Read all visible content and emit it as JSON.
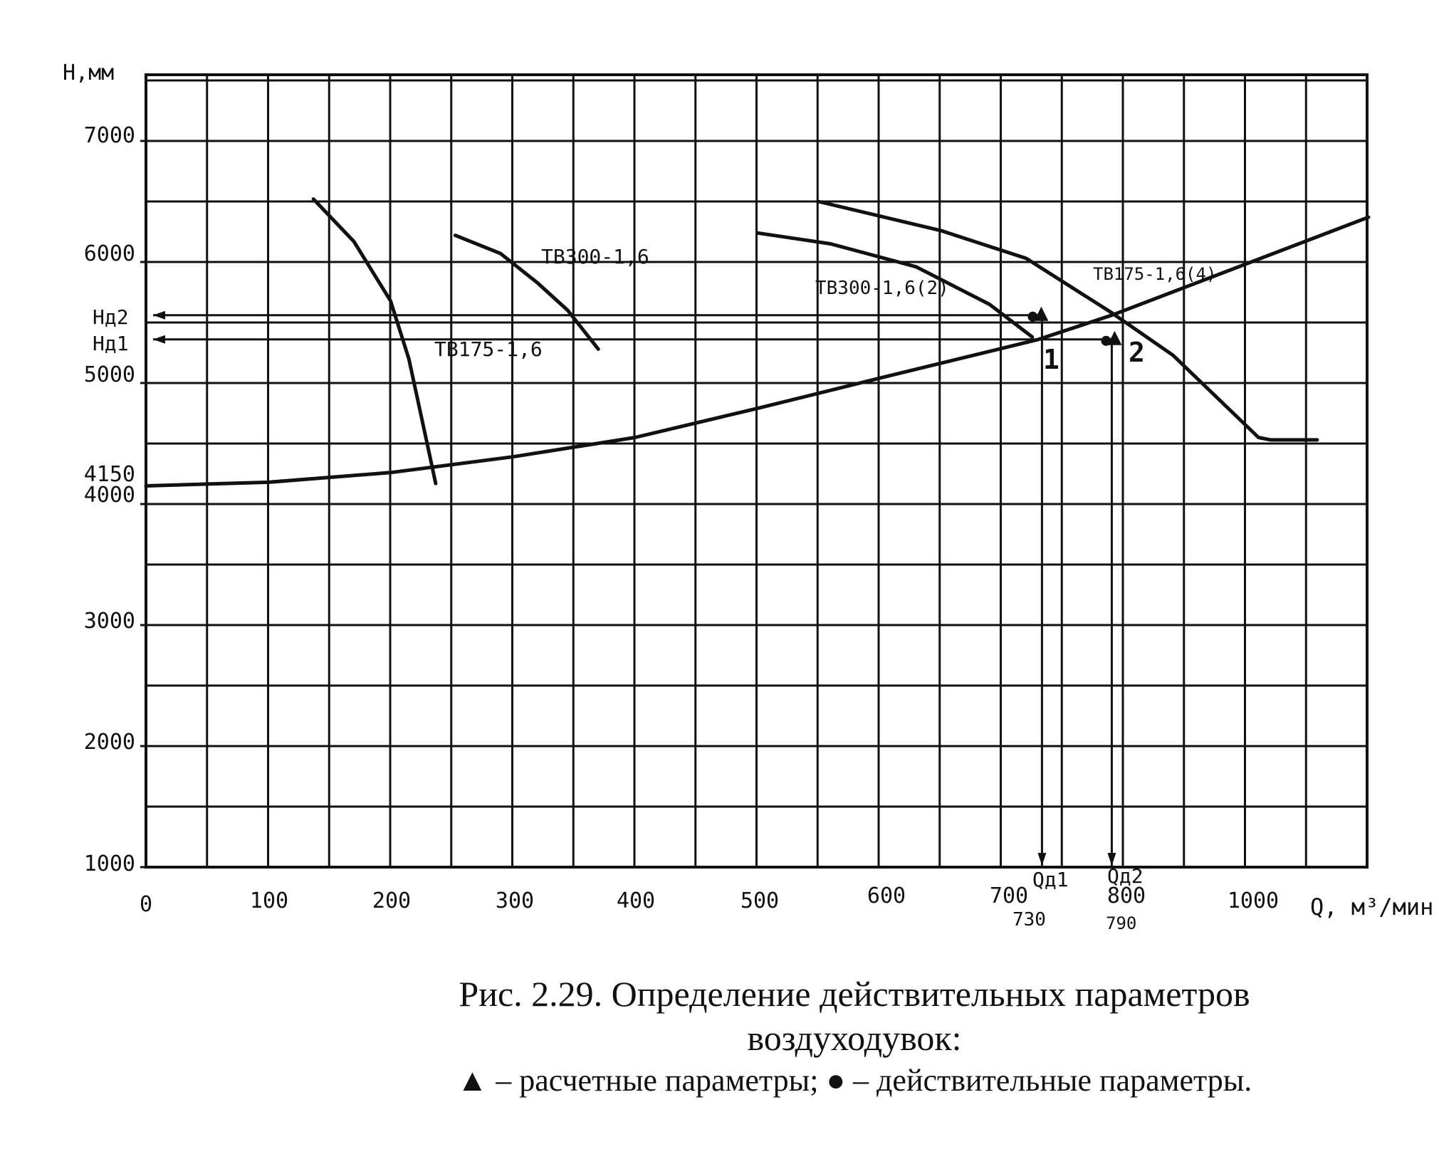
{
  "chart_data": {
    "type": "line",
    "y_axis_label": "H,мм",
    "x_axis_label": "Q, м³/мин",
    "x_ticks": [
      "0",
      "100",
      "200",
      "300",
      "400",
      "500",
      "600",
      "700",
      "800",
      "1000"
    ],
    "y_ticks": [
      "1000",
      "2000",
      "3000",
      "4000",
      "4150",
      "5000",
      "6000",
      "7000"
    ],
    "xlim": [
      0,
      1000
    ],
    "ylim": [
      1000,
      7700
    ],
    "grid": true,
    "series": [
      {
        "name": "ТВ175-1,6",
        "points": [
          [
            137,
            6520
          ],
          [
            170,
            6170
          ],
          [
            200,
            5680
          ],
          [
            215,
            5200
          ],
          [
            230,
            4500
          ],
          [
            237,
            4170
          ]
        ]
      },
      {
        "name": "ТВ300-1,6",
        "points": [
          [
            253,
            6220
          ],
          [
            290,
            6070
          ],
          [
            320,
            5830
          ],
          [
            345,
            5600
          ],
          [
            370,
            5280
          ]
        ]
      },
      {
        "name": "ТВ300-1,6(2)",
        "points": [
          [
            500,
            6240
          ],
          [
            560,
            6150
          ],
          [
            630,
            5960
          ],
          [
            690,
            5650
          ],
          [
            725,
            5380
          ]
        ]
      },
      {
        "name": "ТВ175-1,6(4)",
        "points": [
          [
            550,
            6500
          ],
          [
            650,
            6260
          ],
          [
            720,
            6030
          ],
          [
            790,
            5580
          ],
          [
            840,
            5230
          ],
          [
            910,
            4550
          ],
          [
            920,
            4530
          ],
          [
            958,
            4530
          ]
        ]
      },
      {
        "name": "",
        "points": [
          [
            0,
            4150
          ],
          [
            100,
            4180
          ],
          [
            200,
            4260
          ],
          [
            300,
            4390
          ],
          [
            400,
            4550
          ],
          [
            500,
            4790
          ],
          [
            600,
            5040
          ],
          [
            730,
            5360
          ],
          [
            790,
            5560
          ],
          [
            1000,
            6370
          ]
        ]
      }
    ],
    "annotations": {
      "curve_labels": [
        "ТВ175-1,6",
        "ТВ300-1,6",
        "ТВ300-1,6(2)",
        "ТВ175-1,6(4)"
      ],
      "h_marks": [
        "Hд2",
        "Hд1"
      ],
      "h_values": [
        5560,
        5360
      ],
      "q_marks": [
        "Qд1",
        "Qд2"
      ],
      "q_values": [
        "730",
        "790"
      ],
      "point_labels": [
        "1",
        "2"
      ]
    }
  },
  "caption": {
    "line1": "Рис. 2.29. Определение действительных параметров",
    "line2": "воздуходувок:",
    "line3": "▲ – расчетные параметры; ● – действительные параметры."
  }
}
